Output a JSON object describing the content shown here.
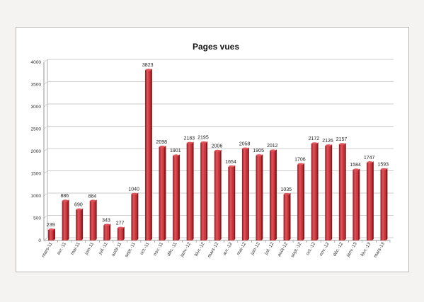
{
  "chart_data": {
    "type": "bar",
    "title": "Pages vues",
    "xlabel": "",
    "ylabel": "",
    "ylim": [
      0,
      4000
    ],
    "yticks": [
      0,
      500,
      1000,
      1500,
      2000,
      2500,
      3000,
      3500,
      4000
    ],
    "grid": "horizontal",
    "legend": "none",
    "categories": [
      "mars-11",
      "avr.-11",
      "mai-11",
      "juin-11",
      "juil.-11",
      "août-11",
      "sept.-11",
      "oct.-11",
      "nov.-11",
      "déc.-11",
      "janv.-12",
      "févr.-12",
      "mars-12",
      "avr.-12",
      "mai-12",
      "juin-12",
      "juil.-12",
      "août-12",
      "sept.-12",
      "oct.-12",
      "nov.-12",
      "déc.-12",
      "janv.-13",
      "févr.-13",
      "mars-13"
    ],
    "values": [
      239,
      886,
      690,
      884,
      343,
      277,
      1040,
      3823,
      2098,
      1901,
      2183,
      2195,
      2006,
      1654,
      2058,
      1905,
      2012,
      1035,
      1706,
      2172,
      2126,
      2157,
      1584,
      1747,
      1593
    ],
    "colors": {
      "bar": "#c1272d",
      "bar_dark": "#8e1a1f",
      "bar_light": "#e0555b",
      "grid": "#bdbdbd"
    }
  }
}
